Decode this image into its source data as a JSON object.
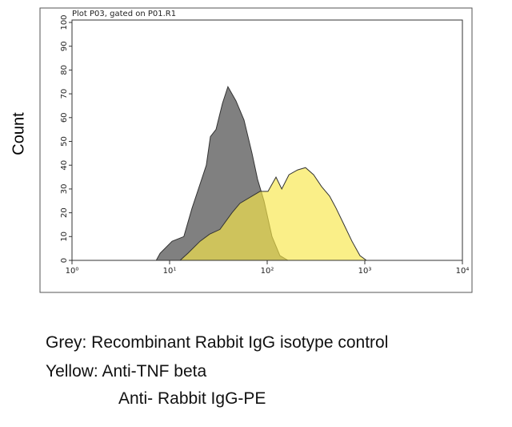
{
  "chart_data": {
    "type": "histogram-overlay",
    "title": "Plot P03, gated on P01.R1",
    "y_label": "Count",
    "log_x": true,
    "xlim": [
      1,
      10000
    ],
    "xticks": [
      {
        "value": 1,
        "label": "10⁰"
      },
      {
        "value": 10,
        "label": "10¹"
      },
      {
        "value": 100,
        "label": "10²"
      },
      {
        "value": 1000,
        "label": "10³"
      },
      {
        "value": 10000,
        "label": "10⁴"
      }
    ],
    "ylim": [
      0,
      100
    ],
    "yticks": [
      0,
      10,
      20,
      30,
      40,
      50,
      60,
      70,
      80,
      90,
      100
    ],
    "series": [
      {
        "color": "#808080",
        "opacity": 1,
        "x": [
          7.3,
          8.0,
          10.6,
          14.0,
          17.0,
          20.5,
          23.8,
          26.2,
          29.9,
          34.8,
          39.6,
          47.9,
          57.8,
          69.8,
          79.7,
          92.7,
          112,
          135,
          163
        ],
        "values": [
          0,
          3,
          8,
          10,
          22,
          32,
          40,
          52,
          55,
          66,
          73,
          67,
          59,
          45,
          34,
          25,
          10,
          2,
          0
        ]
      },
      {
        "color": "#f7e648",
        "opacity": 0.65,
        "x": [
          12.8,
          15.4,
          20.5,
          25.7,
          32.8,
          43.6,
          52.6,
          69.8,
          84.4,
          102,
          123,
          141,
          167,
          205,
          247,
          299,
          361,
          436,
          507,
          612,
          739,
          893,
          1040
        ],
        "values": [
          0,
          3,
          8,
          11,
          13,
          20,
          24,
          27,
          29,
          29,
          35,
          30,
          36,
          38,
          39,
          36,
          31,
          27,
          22,
          15,
          8,
          2,
          0
        ]
      }
    ],
    "notes": [
      "Grey: Recombinant Rabbit IgG isotype control",
      "Yellow: Anti-TNF beta",
      "Anti- Rabbit IgG-PE"
    ]
  }
}
